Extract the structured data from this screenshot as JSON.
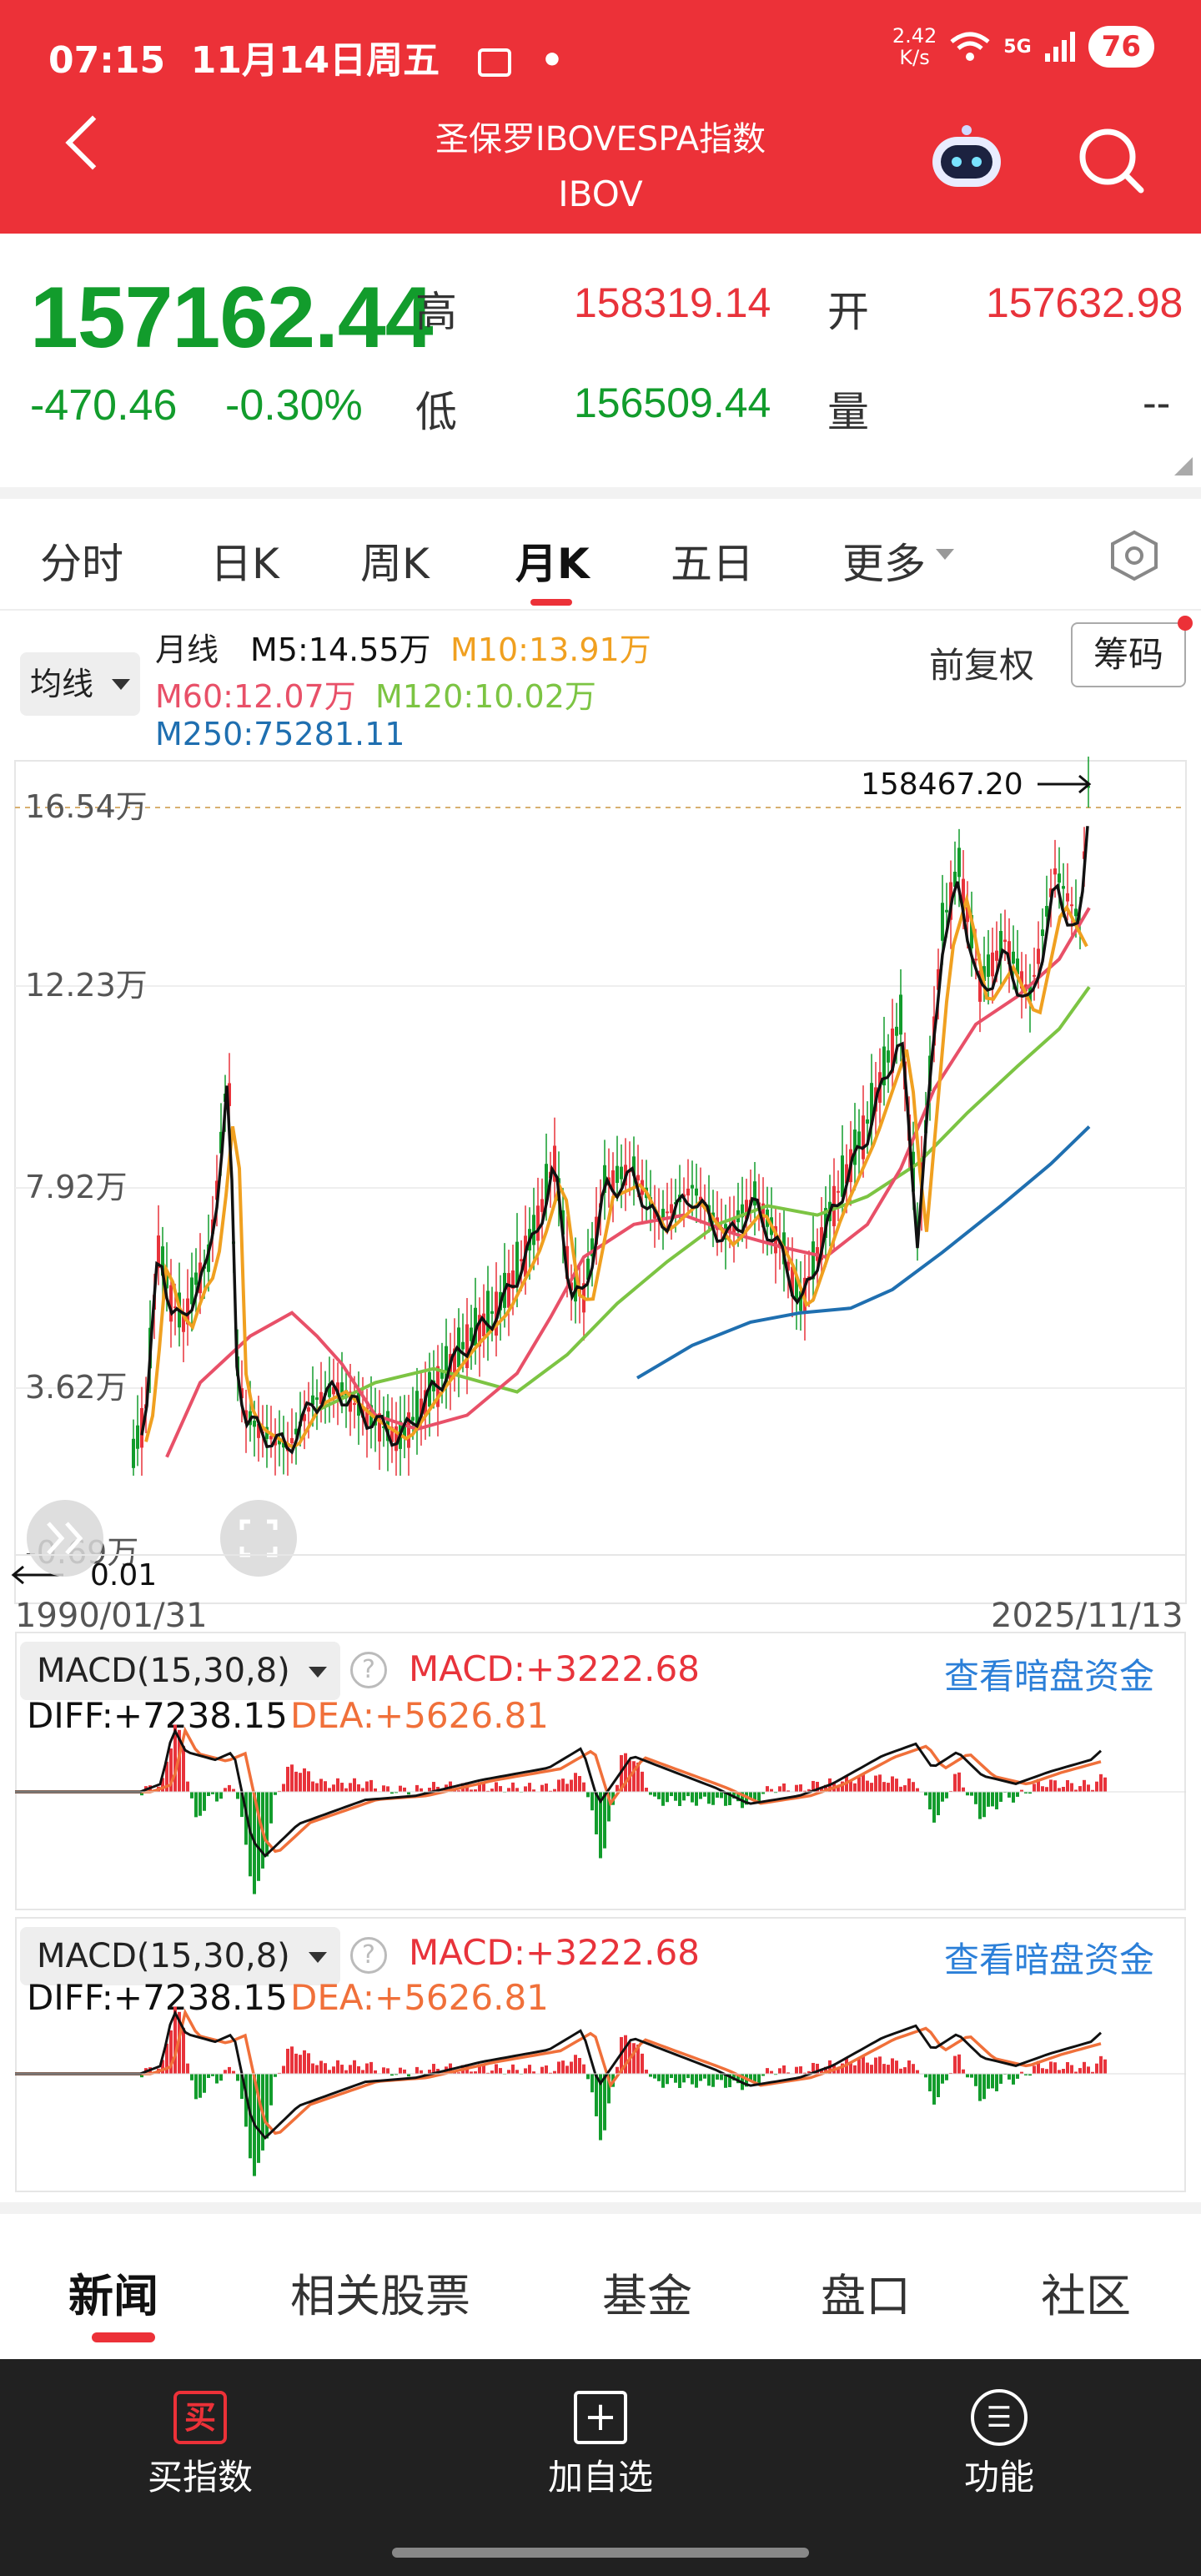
{
  "status_bar": {
    "time": "07:15",
    "date": "11月14日周五",
    "dot": "•",
    "net_speed_value": "2.42",
    "net_speed_unit": "K/s",
    "network": "5G",
    "battery": "76"
  },
  "header": {
    "title": "圣保罗IBOVESPA指数",
    "code": "IBOV"
  },
  "quote": {
    "price": "157162.44",
    "change": "-470.46",
    "change_pct": "-0.30%",
    "high_label": "高",
    "high": "158319.14",
    "open_label": "开",
    "open": "157632.98",
    "low_label": "低",
    "low": "156509.44",
    "volume_label": "量",
    "volume": "--"
  },
  "period_tabs": [
    {
      "label": "分时"
    },
    {
      "label": "日K"
    },
    {
      "label": "周K"
    },
    {
      "label": "月K",
      "active": true
    },
    {
      "label": "五日"
    },
    {
      "label": "更多"
    }
  ],
  "kline": {
    "ma_selector": "均线",
    "legend_title": "月线",
    "ma5": "M5:14.55万",
    "ma10": "M10:13.91万",
    "ma60": "M60:12.07万",
    "ma120": "M120:10.02万",
    "ma250": "M250:75281.11",
    "adjust_label": "前复权",
    "chips_label": "筹码",
    "y_ticks": [
      "16.54万",
      "12.23万",
      "7.92万",
      "3.62万",
      "-0.69万"
    ],
    "max_label": "158467.20",
    "min_label": "0.01",
    "start_date": "1990/01/31",
    "end_date": "2025/11/13",
    "colors": {
      "up": "#e8333b",
      "down": "#129c2c",
      "ma5": "#111111",
      "ma10": "#f0a020",
      "ma60": "#e85068",
      "ma120": "#7cc443",
      "ma250": "#1f6fb0"
    }
  },
  "macd_panels": [
    {
      "name": "MACD(15,30,8)",
      "macd": "MACD:+3222.68",
      "diff": "DIFF:+7238.15",
      "dea": "DEA:+5626.81",
      "link": "查看暗盘资金"
    },
    {
      "name": "MACD(15,30,8)",
      "macd": "MACD:+3222.68",
      "diff": "DIFF:+7238.15",
      "dea": "DEA:+5626.81",
      "link": "查看暗盘资金"
    }
  ],
  "bottom_tabs": [
    {
      "label": "新闻",
      "active": true
    },
    {
      "label": "相关股票"
    },
    {
      "label": "基金"
    },
    {
      "label": "盘口"
    },
    {
      "label": "社区"
    }
  ],
  "bottom_bar": [
    {
      "label": "买指数",
      "icon": "buy-icon",
      "glyph": "买"
    },
    {
      "label": "加自选",
      "icon": "plus-box-icon",
      "glyph": "+"
    },
    {
      "label": "功能",
      "icon": "menu-circle-icon",
      "glyph": "☰"
    }
  ]
}
